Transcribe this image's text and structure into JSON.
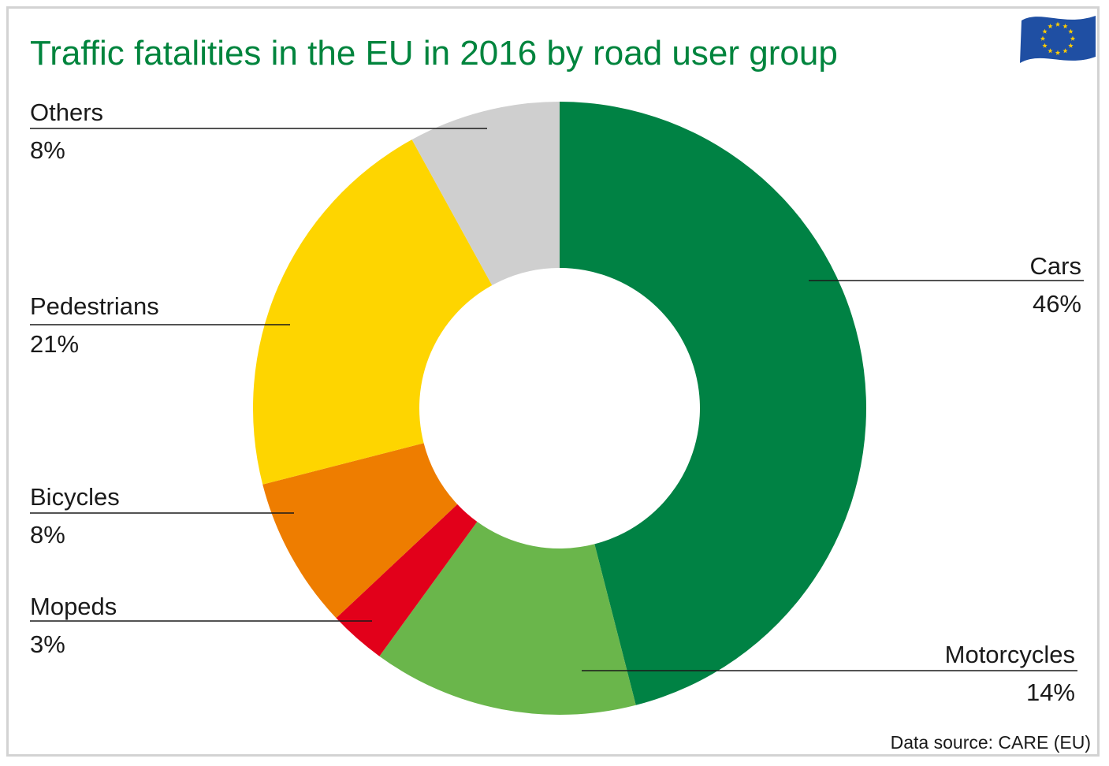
{
  "chart_data": {
    "type": "pie",
    "title": "Traffic fatalities in the EU in 2016 by road user group",
    "source": "Data source: CARE (EU)",
    "categories": [
      "Cars",
      "Motorcycles",
      "Mopeds",
      "Bicycles",
      "Pedestrians",
      "Others"
    ],
    "values": [
      46,
      14,
      3,
      8,
      21,
      8
    ],
    "value_labels": [
      "46%",
      "14%",
      "3%",
      "8%",
      "21%",
      "8%"
    ],
    "colors": [
      "#008244",
      "#6ab64b",
      "#e2001a",
      "#ee7d00",
      "#fed500",
      "#cfcfcf"
    ],
    "donut": true
  },
  "logo": {
    "icon": "eu-flag-icon",
    "flag_color": "#1f4fa3",
    "star_color": "#ffcc00"
  }
}
